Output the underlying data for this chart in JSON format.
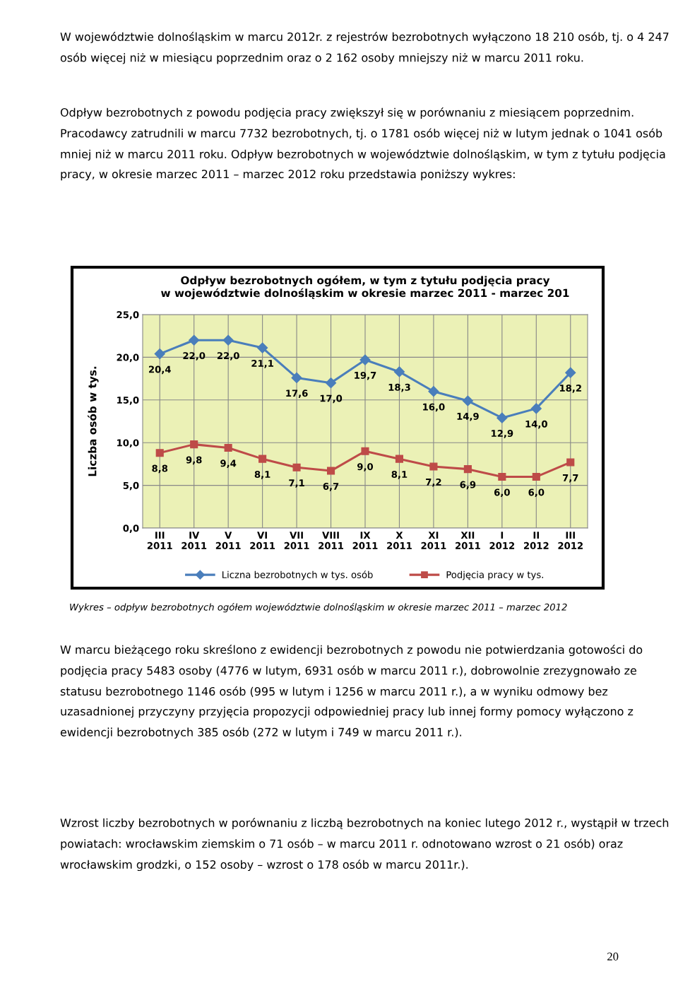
{
  "chart_data": {
    "type": "line",
    "title": "Odpływ bezrobotnych ogółem, w tym z tytułu podjęcia pracy\nw województwie dolnośląskim w okresie marzec 2011 - marzec 201",
    "ylabel": "Liczba osób w tys.",
    "categories": [
      "III\n2011",
      "IV\n2011",
      "V\n2011",
      "VI\n2011",
      "VII\n2011",
      "VIII\n2011",
      "IX\n2011",
      "X\n2011",
      "XI\n2011",
      "XII\n2011",
      "I\n2012",
      "II\n2012",
      "III\n2012"
    ],
    "series": [
      {
        "name": "Liczna bezrobotnych w tys. osób",
        "color": "#4a7ebb",
        "marker": "diamond",
        "values": [
          20.4,
          22.0,
          22.0,
          21.1,
          17.6,
          17.0,
          19.7,
          18.3,
          16.0,
          14.9,
          12.9,
          14.0,
          18.2
        ],
        "value_labels": [
          "20,4",
          "22,0",
          "22,0",
          "21,1",
          "17,6",
          "17,0",
          "19,7",
          "18,3",
          "16,0",
          "14,9",
          "12,9",
          "14,0",
          "18,2"
        ]
      },
      {
        "name": "Podjęcia pracy w tys.",
        "color": "#be4b48",
        "marker": "square",
        "values": [
          8.8,
          9.8,
          9.4,
          8.1,
          7.1,
          6.7,
          9.0,
          8.1,
          7.2,
          6.9,
          6.0,
          6.0,
          7.7
        ],
        "value_labels": [
          "8,8",
          "9,8",
          "9,4",
          "8,1",
          "7,1",
          "6,7",
          "9,0",
          "8,1",
          "7,2",
          "6,9",
          "6,0",
          "6,0",
          "7,7"
        ]
      }
    ],
    "ylim": [
      0,
      25
    ],
    "yticks": [
      {
        "value": 0,
        "label": "0,0"
      },
      {
        "value": 5,
        "label": "5,0"
      },
      {
        "value": 10,
        "label": "10,0"
      },
      {
        "value": 15,
        "label": "15,0"
      },
      {
        "value": 20,
        "label": "20,0"
      },
      {
        "value": 25,
        "label": "25,0"
      }
    ],
    "grid": true,
    "legend": "bottom",
    "line_style": "solid",
    "annotations": [
      "W województwie dolnośląskim w marcu 2012r. z rejestrów bezrobotnych wyłączono 18 210 osób, tj. o 4 247 osób więcej niż w miesiącu poprzednim oraz o 2 162 osoby mniejszy niż w marcu 2011 roku.",
      "Odpływ bezrobotnych z powodu podjęcia pracy zwiększył się w porównaniu z miesiącem poprzednim. Pracodawcy zatrudnili w marcu 7732 bezrobotnych, tj. o 1781 osób więcej niż w lutym jednak o 1041 osób mniej niż w marcu 2011 roku. Odpływ bezrobotnych w województwie dolnośląskim, w tym z tytułu podjęcia pracy, w okresie marzec 2011 – marzec 2012 roku przedstawia poniższy wykres:",
      "Wykres – odpływ bezrobotnych ogółem województwie dolnośląskim w okresie marzec 2011 – marzec 2012",
      "W marcu bieżącego roku skreślono z ewidencji bezrobotnych z powodu nie potwierdzania gotowości do podjęcia pracy 5483 osoby (4776 w lutym, 6931 osób w marcu 2011 r.), dobrowolnie zrezygnowało ze statusu bezrobotnego 1146 osób (995 w lutym i 1256 w marcu 2011 r.), a w wyniku odmowy bez uzasadnionej przyczyny przyjęcia propozycji odpowiedniej pracy lub innej formy pomocy wyłączono z ewidencji bezrobotnych 385 osób (272 w lutym i 749 w marcu 2011 r.).",
      "Wzrost liczby bezrobotnych w porównaniu z liczbą bezrobotnych na koniec lutego 2012 r., wystąpił w trzech powiatach: wrocławskim ziemskim o 71 osób – w marcu 2011 r. odnotowano wzrost o 21 osób) oraz wrocławskim grodzki, o 152 osoby – wzrost o 178 osób w marcu 2011r.).",
      "20"
    ]
  }
}
